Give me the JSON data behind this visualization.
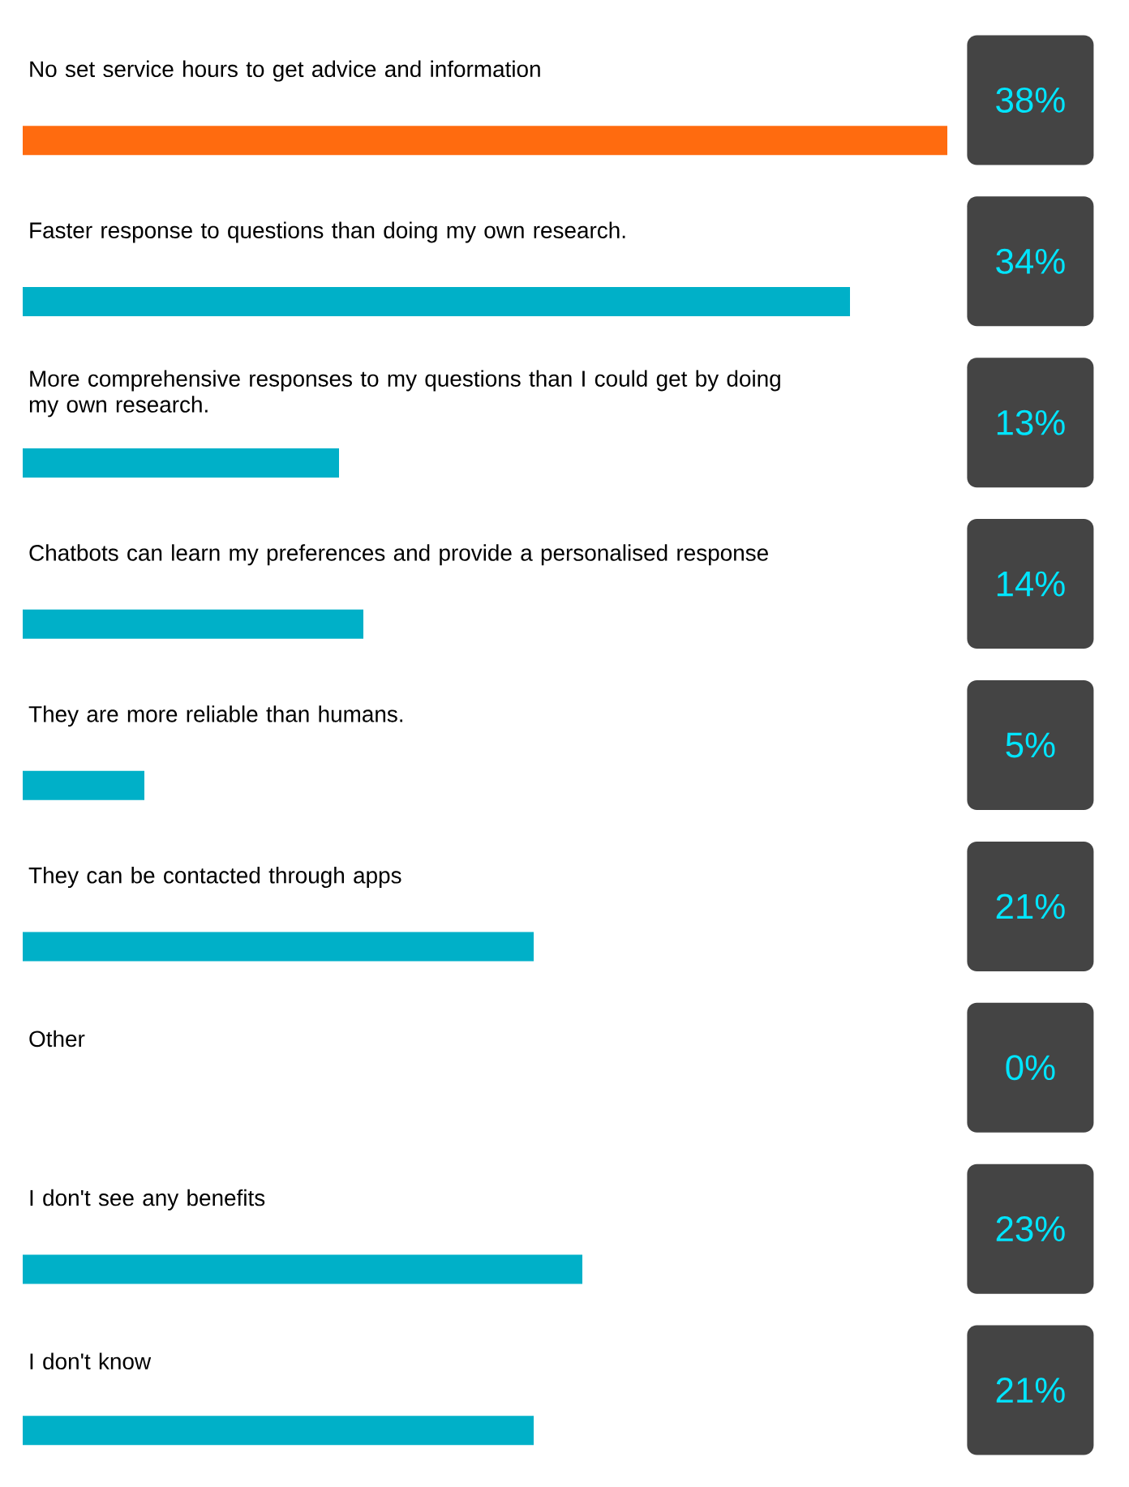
{
  "chart_data": {
    "type": "bar",
    "orientation": "horizontal",
    "categories": [
      "No set service hours to get advice and information",
      "Faster response to questions than doing my own research.",
      "More comprehensive responses to my questions than I could get by doing my own research.",
      "Chatbots can learn my preferences and provide a personalised response",
      "They are more reliable than humans.",
      "They can be contacted through apps",
      "Other",
      "I don't see any benefits",
      "I don't know"
    ],
    "values": [
      38,
      34,
      13,
      14,
      5,
      21,
      0,
      23,
      21
    ],
    "value_labels": [
      "38%",
      "34%",
      "13%",
      "14%",
      "5%",
      "21%",
      "0%",
      "23%",
      "21%"
    ],
    "colors": [
      "#ff6b0f",
      "#00b0c8",
      "#00b0c8",
      "#00b0c8",
      "#00b0c8",
      "#00b0c8",
      "#00b0c8",
      "#00b0c8",
      "#00b0c8"
    ],
    "tick_labels": false
  }
}
